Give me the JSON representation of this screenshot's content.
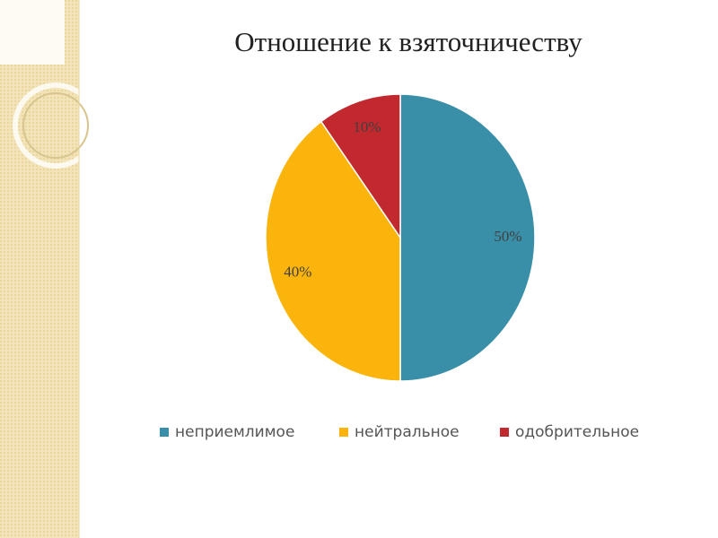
{
  "chart_data": {
    "type": "pie",
    "title": "Отношение к взяточничеству",
    "categories": [
      "неприемлимое",
      "нейтральное",
      "одобрительное"
    ],
    "values": [
      50,
      40,
      10
    ],
    "value_labels": [
      "50%",
      "40%",
      "10%"
    ],
    "colors": [
      "#3a8fa8",
      "#fbb40c",
      "#c1292e"
    ]
  }
}
